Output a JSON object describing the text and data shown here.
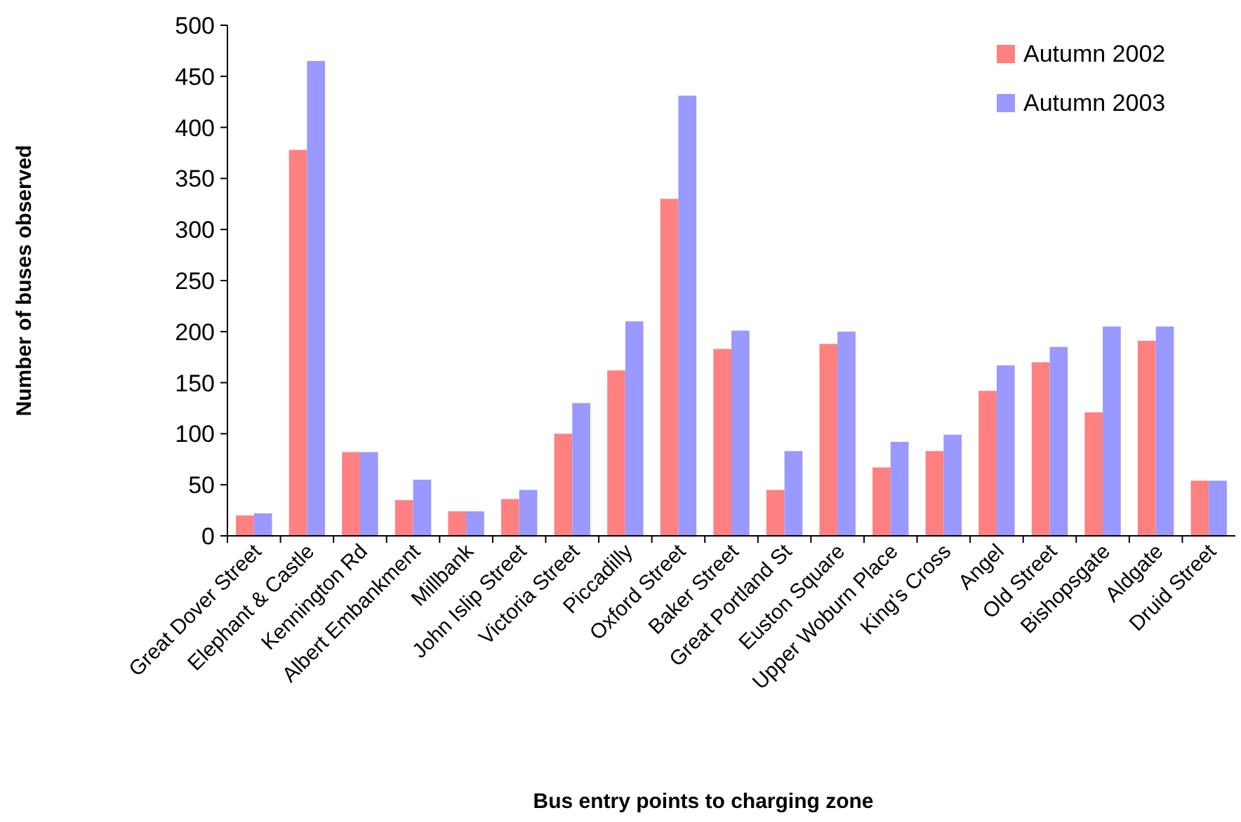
{
  "chart_data": {
    "type": "bar",
    "xlabel": "Bus entry points to charging zone",
    "ylabel": "Number of buses observed",
    "categories": [
      "Great Dover Street",
      "Elephant & Castle",
      "Kennington Rd",
      "Albert Embankment",
      "Millbank",
      "John Islip Street",
      "Victoria Street",
      "Piccadilly",
      "Oxford Street",
      "Baker Street",
      "Great Portland St",
      "Euston Square",
      "Upper Woburn Place",
      "King's Cross",
      "Angel",
      "Old Street",
      "Bishopsgate",
      "Aldgate",
      "Druid Street"
    ],
    "series": [
      {
        "name": "Autumn 2002",
        "color": "#ff8080",
        "values": [
          20,
          378,
          82,
          35,
          24,
          36,
          100,
          162,
          330,
          183,
          45,
          188,
          67,
          83,
          142,
          170,
          121,
          191,
          54
        ]
      },
      {
        "name": "Autumn 2003",
        "color": "#9999ff",
        "values": [
          22,
          465,
          82,
          55,
          24,
          45,
          130,
          210,
          431,
          201,
          83,
          200,
          92,
          99,
          167,
          185,
          205,
          205,
          54
        ]
      }
    ],
    "ylim": [
      0,
      500
    ],
    "yticks": [
      0,
      50,
      100,
      150,
      200,
      250,
      300,
      350,
      400,
      450,
      500
    ],
    "legend": "top right",
    "grid": false
  }
}
